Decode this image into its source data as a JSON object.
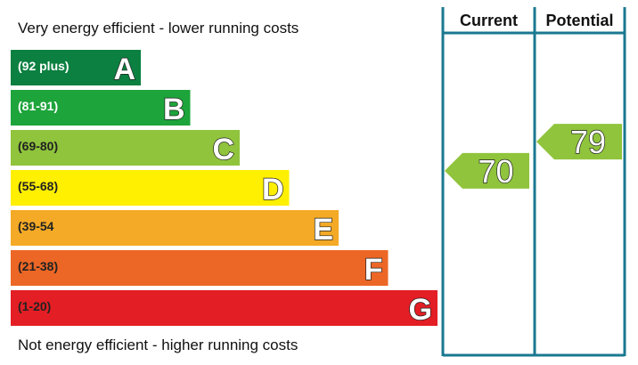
{
  "chart_data": {
    "type": "bar",
    "top_caption": "Very energy efficient - lower running costs",
    "bottom_caption": "Not energy efficient - higher running costs",
    "bands": [
      {
        "letter": "A",
        "range": "(92 plus)",
        "color": "#0b8040",
        "range_text_color": "#ffffff"
      },
      {
        "letter": "B",
        "range": "(81-91)",
        "color": "#1da43b",
        "range_text_color": "#ffffff"
      },
      {
        "letter": "C",
        "range": "(69-80)",
        "color": "#8fc43c",
        "range_text_color": "#222222"
      },
      {
        "letter": "D",
        "range": "(55-68)",
        "color": "#ffef00",
        "range_text_color": "#222222"
      },
      {
        "letter": "E",
        "range": "(39-54",
        "color": "#f4aa26",
        "range_text_color": "#222222"
      },
      {
        "letter": "F",
        "range": "(21-38)",
        "color": "#ec6625",
        "range_text_color": "#222222"
      },
      {
        "letter": "G",
        "range": "(1-20)",
        "color": "#e31e24",
        "range_text_color": "#222222"
      }
    ],
    "columns": [
      "Current",
      "Potential"
    ],
    "ratings": [
      {
        "column": "Current",
        "value": 70,
        "band": "C",
        "color": "#8fc43c"
      },
      {
        "column": "Potential",
        "value": 79,
        "band": "C",
        "color": "#8fc43c"
      }
    ],
    "frame_color": "#1a7890"
  }
}
